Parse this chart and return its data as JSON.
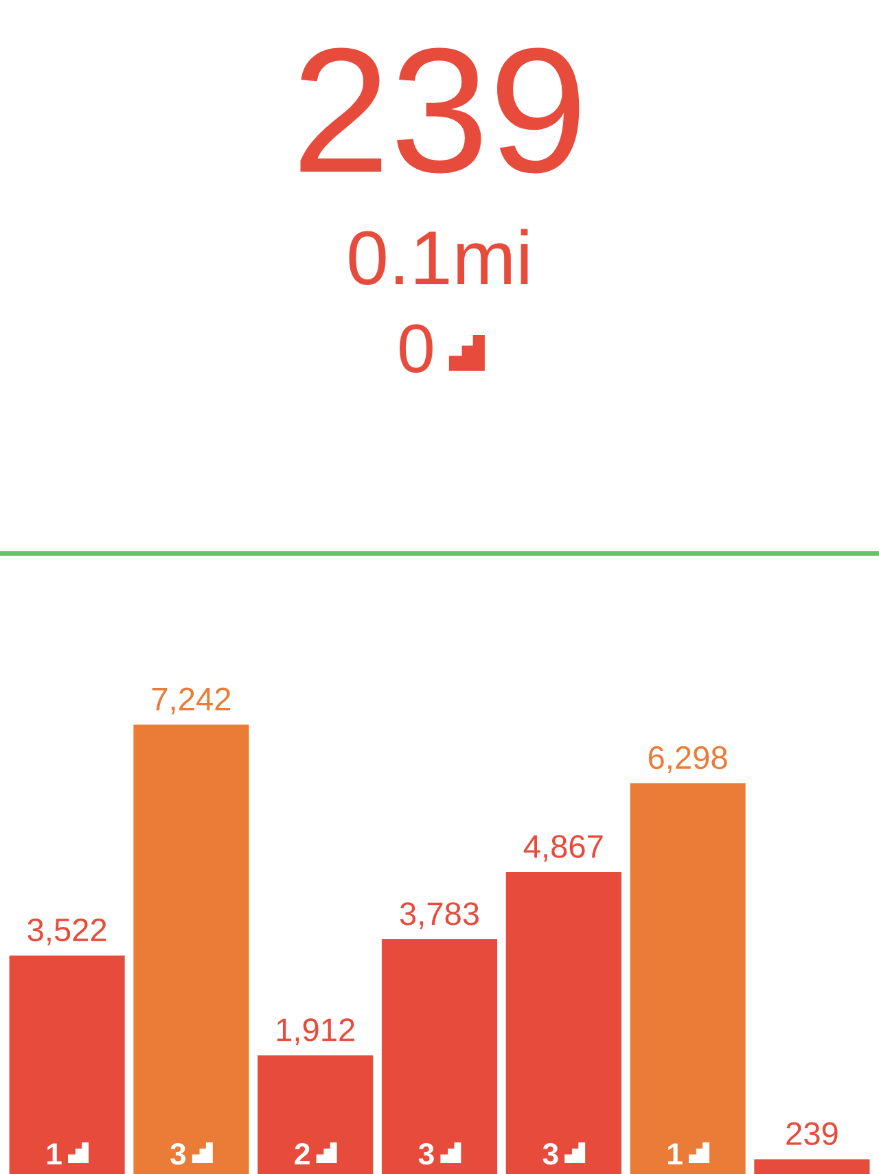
{
  "chart_data": {
    "type": "bar",
    "title": "239",
    "subtitle": "0.1mi",
    "categories": [
      null,
      null,
      null,
      null,
      null,
      null,
      null
    ],
    "values": [
      3522,
      7242,
      1912,
      3783,
      4867,
      6298,
      239
    ],
    "colors": [
      "#e64b3b",
      "#ea7c37",
      "#e64b3b",
      "#e64b3b",
      "#e64b3b",
      "#ea7c37",
      "#e64b3b"
    ],
    "value_labels": [
      "3,522",
      "7,242",
      "1,912",
      "3,783",
      "4,867",
      "6,298",
      "239"
    ],
    "annotations": [
      "0",
      "1",
      "3",
      "2",
      "3",
      "3",
      "1"
    ],
    "ref_lines": [
      {
        "axis": "y",
        "value": 10000,
        "color": "#6cbf6c"
      }
    ]
  }
}
